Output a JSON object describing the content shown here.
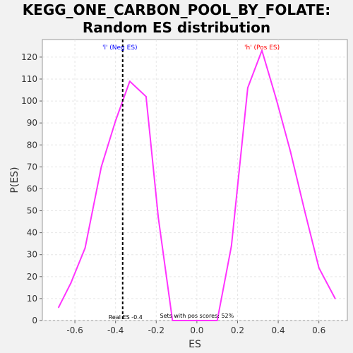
{
  "chart_data": {
    "type": "line",
    "title_line1": "KEGG_ONE_CARBON_POOL_BY_FOLATE:",
    "title_line2": "Random ES distribution",
    "xlabel": "ES",
    "ylabel": "P(ES)",
    "xlim": [
      -0.76,
      0.74
    ],
    "ylim": [
      0,
      128
    ],
    "x_ticks": [
      -0.6,
      -0.4,
      -0.2,
      0.0,
      0.2,
      0.4,
      0.6
    ],
    "x_tick_labels": [
      "-0.6",
      "-0.4",
      "-0.2",
      "0.0",
      "0.2",
      "0.4",
      "0.6"
    ],
    "y_ticks": [
      0,
      10,
      20,
      30,
      40,
      50,
      60,
      70,
      80,
      90,
      100,
      110,
      120
    ],
    "y_tick_labels": [
      "0",
      "10",
      "20",
      "30",
      "40",
      "50",
      "60",
      "70",
      "80",
      "90",
      "100",
      "110",
      "120"
    ],
    "grid": true,
    "series": [
      {
        "color": "#ff33ff",
        "points": [
          [
            -0.68,
            6
          ],
          [
            -0.62,
            17
          ],
          [
            -0.55,
            33
          ],
          [
            -0.47,
            70
          ],
          [
            -0.4,
            91
          ],
          [
            -0.33,
            109
          ],
          [
            -0.25,
            102
          ],
          [
            -0.19,
            47
          ],
          [
            -0.12,
            0
          ],
          [
            -0.06,
            0
          ],
          [
            0.1,
            0
          ],
          [
            0.17,
            34
          ],
          [
            0.25,
            106
          ],
          [
            0.32,
            123
          ],
          [
            0.39,
            101
          ],
          [
            0.46,
            77
          ],
          [
            0.53,
            50
          ],
          [
            0.6,
            24
          ],
          [
            0.68,
            10
          ]
        ]
      }
    ],
    "real_es": {
      "x": -0.365,
      "label": "Real ES -0.4",
      "color": "#000000"
    },
    "neg_label": {
      "text": "'l' (Neg ES)",
      "color": "#0000ff"
    },
    "pos_label": {
      "text": "'h' (Pos ES)",
      "color": "#ff0000"
    },
    "footer_note": "Sets with pos scores: 52%"
  }
}
